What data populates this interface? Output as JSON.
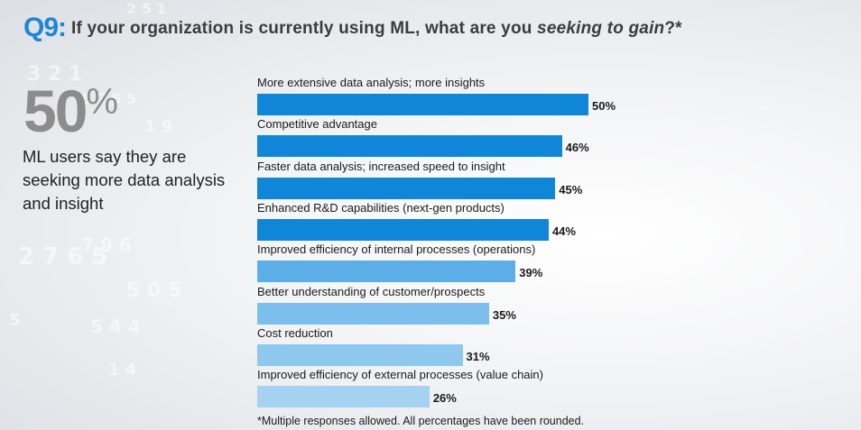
{
  "question": {
    "number": "Q9:",
    "text_before": "If your organization is currently using ML, what are you ",
    "text_emphasis": "seeking to gain",
    "text_after": "?*"
  },
  "highlight": {
    "value": "50",
    "unit": "%",
    "caption": "ML users say they are seeking more data analysis and insight"
  },
  "footnote": "*Multiple responses allowed. All percentages have been rounded.",
  "chart_data": {
    "type": "bar",
    "orientation": "horizontal",
    "title": "If your organization is currently using ML, what are you seeking to gain?*",
    "categories": [
      "More extensive data analysis; more insights",
      "Competitive advantage",
      "Faster data analysis; increased speed to insight",
      "Enhanced R&D capabilities (next-gen products)",
      "Improved efficiency of internal processes (operations)",
      "Better understanding of customer/prospects",
      "Cost reduction",
      "Improved efficiency of external processes (value chain)"
    ],
    "values": [
      50,
      46,
      45,
      44,
      39,
      35,
      31,
      26
    ],
    "value_labels": [
      "50%",
      "46%",
      "45%",
      "44%",
      "39%",
      "35%",
      "31%",
      "26%"
    ],
    "colors": [
      "#1086d8",
      "#1086d8",
      "#1086d8",
      "#1086d8",
      "#5caee6",
      "#7dbfec",
      "#8ec8ef",
      "#a6d2f2"
    ],
    "xlim": [
      0,
      100
    ],
    "grid": false,
    "legend": "none"
  }
}
